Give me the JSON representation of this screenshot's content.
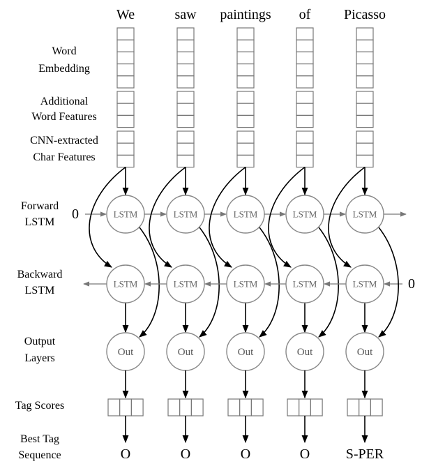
{
  "words": [
    "We",
    "saw",
    "paintings",
    "of",
    "Picasso"
  ],
  "tags": [
    "O",
    "O",
    "O",
    "O",
    "S-PER"
  ],
  "row_labels": {
    "word_embedding": [
      "Word",
      "Embedding"
    ],
    "additional_features": [
      "Additional",
      "Word Features"
    ],
    "cnn_features": [
      "CNN-extracted",
      "Char Features"
    ],
    "forward_lstm": [
      "Forward",
      "LSTM"
    ],
    "backward_lstm": [
      "Backward",
      "LSTM"
    ],
    "output_layers": [
      "Output",
      "Layers"
    ],
    "tag_scores": [
      "Tag Scores"
    ],
    "best_tag_sequence": [
      "Best Tag",
      "Sequence"
    ]
  },
  "node_labels": {
    "lstm": "LSTM",
    "out": "Out"
  },
  "initial_state_label": "0",
  "cells": {
    "word_embedding": 5,
    "additional_features": 3,
    "cnn_features": 3,
    "tag_scores": 3
  }
}
